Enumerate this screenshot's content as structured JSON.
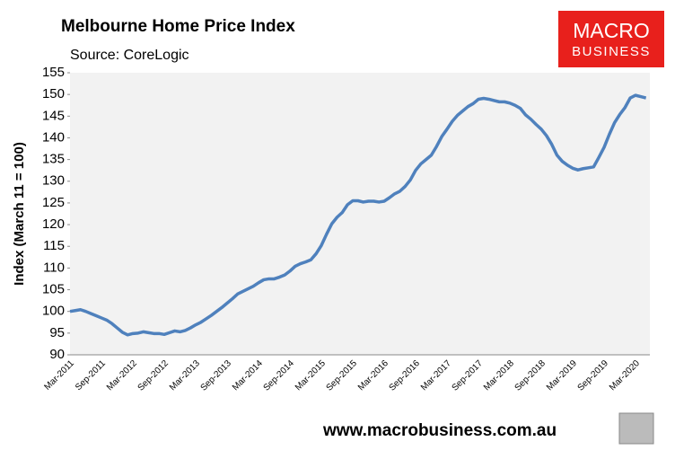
{
  "chart_data": {
    "type": "line",
    "title": "Melbourne Home Price Index",
    "subtitle": "Source: CoreLogic",
    "y_label": "Index (March 11 = 100)",
    "categories": [
      "Mar-2011",
      null,
      null,
      null,
      null,
      null,
      "Sep-2011",
      null,
      null,
      null,
      null,
      null,
      "Mar-2012",
      null,
      null,
      null,
      null,
      null,
      "Sep-2012",
      null,
      null,
      null,
      null,
      null,
      "Mar-2013",
      null,
      null,
      null,
      null,
      null,
      "Sep-2013",
      null,
      null,
      null,
      null,
      null,
      "Mar-2014",
      null,
      null,
      null,
      null,
      null,
      "Sep-2014",
      null,
      null,
      null,
      null,
      null,
      "Mar-2015",
      null,
      null,
      null,
      null,
      null,
      "Sep-2015",
      null,
      null,
      null,
      null,
      null,
      "Mar-2016",
      null,
      null,
      null,
      null,
      null,
      "Sep-2016",
      null,
      null,
      null,
      null,
      null,
      "Mar-2017",
      null,
      null,
      null,
      null,
      null,
      "Sep-2017",
      null,
      null,
      null,
      null,
      null,
      "Mar-2018",
      null,
      null,
      null,
      null,
      null,
      "Sep-2018",
      null,
      null,
      null,
      null,
      null,
      "Mar-2019",
      null,
      null,
      null,
      null,
      null,
      "Sep-2019",
      null,
      null,
      null,
      null,
      null,
      "Mar-2020",
      null,
      null
    ],
    "series": [
      {
        "color": "#4f81bd",
        "values": [
          100.0,
          100.2,
          100.4,
          100.0,
          99.5,
          99.0,
          98.5,
          98.0,
          97.2,
          96.2,
          95.2,
          94.6,
          94.9,
          95.0,
          95.3,
          95.1,
          94.9,
          94.9,
          94.7,
          95.1,
          95.5,
          95.3,
          95.6,
          96.2,
          96.9,
          97.5,
          98.3,
          99.1,
          100.0,
          100.9,
          101.9,
          102.9,
          104.0,
          104.6,
          105.2,
          105.8,
          106.6,
          107.3,
          107.5,
          107.5,
          107.9,
          108.4,
          109.3,
          110.4,
          111.0,
          111.4,
          111.9,
          113.3,
          115.2,
          117.8,
          120.2,
          121.7,
          122.8,
          124.6,
          125.5,
          125.5,
          125.2,
          125.4,
          125.4,
          125.2,
          125.4,
          126.2,
          127.1,
          127.7,
          128.8,
          130.3,
          132.5,
          134.0,
          135.0,
          136.0,
          138.0,
          140.3,
          142.0,
          143.8,
          145.2,
          146.2,
          147.2,
          147.9,
          148.9,
          149.1,
          148.9,
          148.6,
          148.3,
          148.3,
          148.0,
          147.5,
          146.8,
          145.3,
          144.3,
          143.1,
          142.0,
          140.5,
          138.5,
          136.0,
          134.6,
          133.7,
          133.0,
          132.6,
          132.9,
          133.1,
          133.3,
          135.5,
          137.8,
          140.8,
          143.5,
          145.4,
          147.0,
          149.2,
          149.8,
          149.5,
          149.2
        ]
      }
    ],
    "ylim": [
      90,
      155
    ],
    "yticks": [
      90,
      95,
      100,
      105,
      110,
      115,
      120,
      125,
      130,
      135,
      140,
      145,
      150,
      155
    ],
    "grid": false
  },
  "logo": {
    "line1": "MACRO",
    "line2": "BUSINESS"
  },
  "footer": "www.macrobusiness.com.au"
}
